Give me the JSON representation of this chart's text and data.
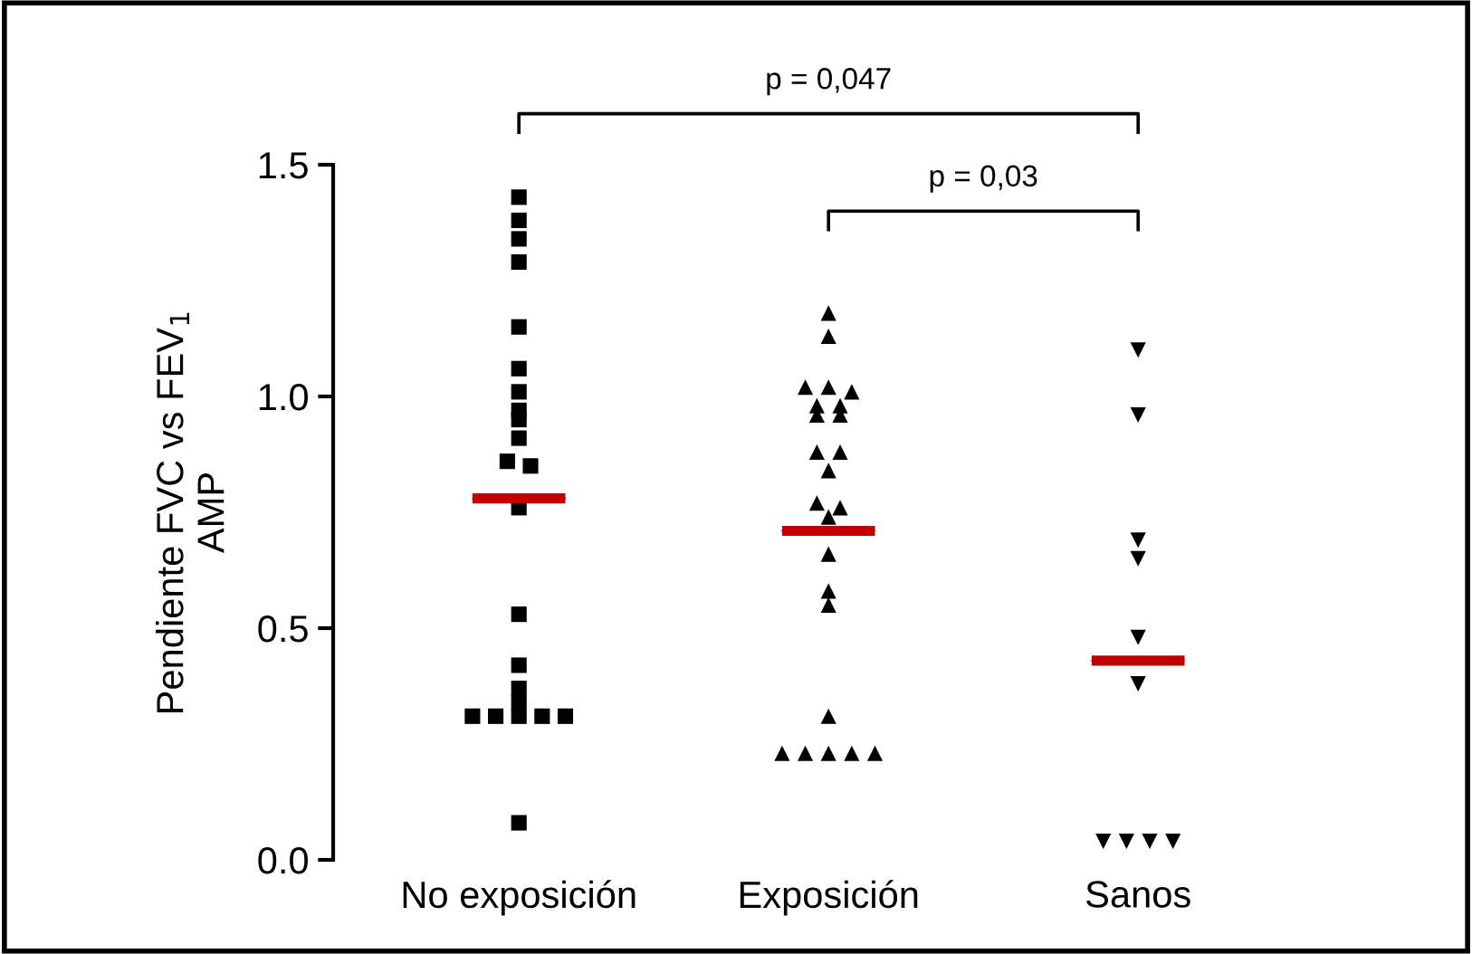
{
  "chart_data": {
    "type": "scatter",
    "ylabel": "Pendiente FVC vs FEV$_{1}$\nAMP",
    "categories": [
      "No exposición",
      "Exposición",
      "Sanos"
    ],
    "ylim": [
      0,
      1.5
    ],
    "yticks": [
      {
        "value": 0,
        "label": "0.0"
      },
      {
        "value": 0.5,
        "label": "0.5"
      },
      {
        "value": 1,
        "label": "1.0"
      },
      {
        "value": 1.5,
        "label": "1.5"
      }
    ],
    "grid": false,
    "legend": false,
    "annotations": [
      "p = 0,047",
      "p = 0,03"
    ],
    "series": [
      {
        "marker": "square",
        "color": "#000000",
        "x": [
          "No exposición",
          "No exposición",
          "No exposición",
          "No exposición",
          "No exposición",
          "No exposición",
          "No exposición",
          "No exposición",
          "No exposición",
          "No exposición",
          "No exposición",
          "No exposición",
          "No exposición",
          "No exposición",
          "No exposición",
          "No exposición",
          "No exposición",
          "No exposición",
          "No exposición",
          "No exposición",
          "No exposición",
          "No exposición",
          "No exposición"
        ],
        "values": [
          1.43,
          1.38,
          1.34,
          1.29,
          1.15,
          1.06,
          1.01,
          0.97,
          0.95,
          0.91,
          0.86,
          0.85,
          0.76,
          0.53,
          0.42,
          0.37,
          0.34,
          0.31,
          0.31,
          0.31,
          0.31,
          0.31,
          0.08
        ]
      },
      {
        "marker": "triangle",
        "color": "#000000",
        "x": [
          "Exposición",
          "Exposición",
          "Exposición",
          "Exposición",
          "Exposición",
          "Exposición",
          "Exposición",
          "Exposición",
          "Exposición",
          "Exposición",
          "Exposición",
          "Exposición",
          "Exposición",
          "Exposición",
          "Exposición",
          "Exposición",
          "Exposición",
          "Exposición",
          "Exposición",
          "Exposición",
          "Exposición",
          "Exposición",
          "Exposición",
          "Exposición"
        ],
        "values": [
          1.18,
          1.13,
          1.02,
          1.02,
          1.01,
          0.98,
          0.98,
          0.96,
          0.96,
          0.88,
          0.88,
          0.84,
          0.77,
          0.76,
          0.74,
          0.66,
          0.58,
          0.55,
          0.31,
          0.23,
          0.23,
          0.23,
          0.23,
          0.23
        ]
      },
      {
        "marker": "triangle_down",
        "color": "#000000",
        "x": [
          "Sanos",
          "Sanos",
          "Sanos",
          "Sanos",
          "Sanos",
          "Sanos",
          "Sanos",
          "Sanos",
          "Sanos",
          "Sanos"
        ],
        "values": [
          1.1,
          0.96,
          0.69,
          0.65,
          0.48,
          0.38,
          0.04,
          0.04,
          0.04,
          0.04
        ]
      },
      {
        "type": "box",
        "color": "#c00000",
        "boxes": [
          {
            "low": 0.78,
            "q1": 0.78,
            "median": 0.78,
            "q3": 0.78,
            "high": 0.78
          },
          {
            "low": 0.71,
            "q1": 0.71,
            "median": 0.71,
            "q3": 0.71,
            "high": 0.71
          },
          {
            "low": 0.43,
            "q1": 0.43,
            "median": 0.43,
            "q3": 0.43,
            "high": 0.43
          }
        ]
      }
    ]
  }
}
